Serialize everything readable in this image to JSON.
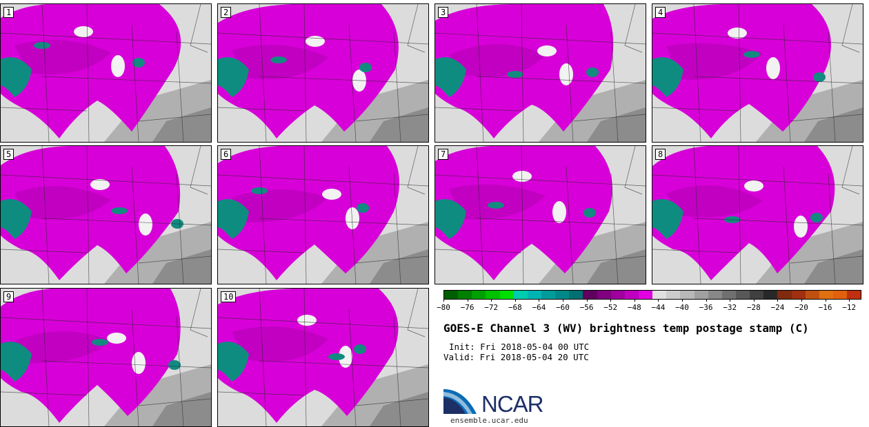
{
  "panels": [
    {
      "label": "1"
    },
    {
      "label": "2"
    },
    {
      "label": "3"
    },
    {
      "label": "4"
    },
    {
      "label": "5"
    },
    {
      "label": "6"
    },
    {
      "label": "7"
    },
    {
      "label": "8"
    },
    {
      "label": "9"
    },
    {
      "label": "10"
    }
  ],
  "colorbar": {
    "colors": [
      "#005e00",
      "#007f00",
      "#00a000",
      "#00c000",
      "#00e000",
      "#00ccb0",
      "#00b4b4",
      "#009c9c",
      "#008888",
      "#007070",
      "#600060",
      "#800080",
      "#a000a0",
      "#c000c0",
      "#e000e0",
      "#e0e0e0",
      "#cccccc",
      "#b8b8b8",
      "#a0a0a0",
      "#888888",
      "#707070",
      "#585858",
      "#404040",
      "#282828",
      "#802a10",
      "#a03010",
      "#c05010",
      "#e07010",
      "#e06010",
      "#c03010"
    ],
    "tick_labels": [
      "−80",
      "−76",
      "−72",
      "−68",
      "−64",
      "−60",
      "−56",
      "−52",
      "−48",
      "−44",
      "−40",
      "−36",
      "−32",
      "−28",
      "−24",
      "−20",
      "−16",
      "−12"
    ],
    "palette_roles": {
      "cold": "#00a0a0",
      "moist": "#e000e0",
      "dry": "#c8c8c8",
      "warm": "#e07010"
    }
  },
  "title": "GOES-E Channel 3 (WV) brightness temp postage stamp (C)",
  "init_line": "Init: Fri 2018-05-04 00 UTC",
  "valid_line": "Valid: Fri 2018-05-04 20 UTC",
  "logo": {
    "name": "NCAR",
    "url": "ensemble.ucar.edu",
    "primary_color": "#1c2f66",
    "accent_color": "#0a6cb4"
  }
}
